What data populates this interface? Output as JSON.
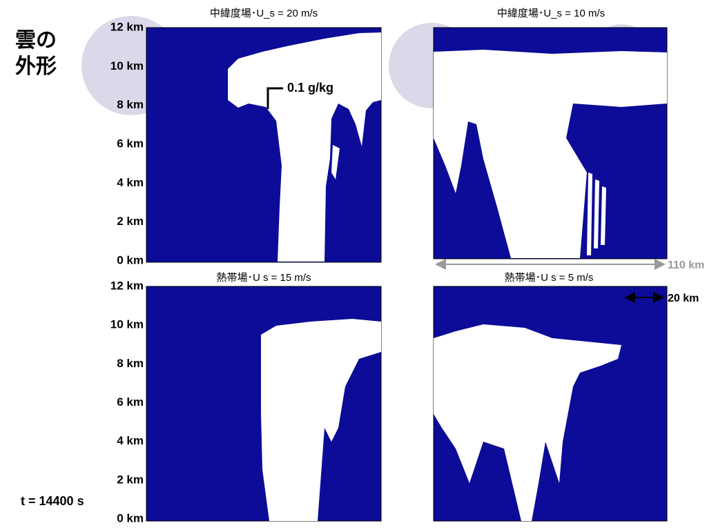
{
  "header": {
    "title_line1": "雲の",
    "title_line2": "外形"
  },
  "panels": [
    {
      "title": "中緯度場･U_s = 20 m/s"
    },
    {
      "title": "中緯度場･U_s = 10 m/s"
    },
    {
      "title": "熱帯場･U  s = 15 m/s"
    },
    {
      "title": "熱帯場･U  s = 5 m/s"
    }
  ],
  "y_axis_labels": [
    "12 km",
    "10 km",
    "8 km",
    "6 km",
    "4 km",
    "2 km",
    "0 km"
  ],
  "annotations": {
    "contour": "0.1 g/kg",
    "domain_width": "110 km",
    "scale_bar": "20 km",
    "time": "t = 14400 s"
  }
}
